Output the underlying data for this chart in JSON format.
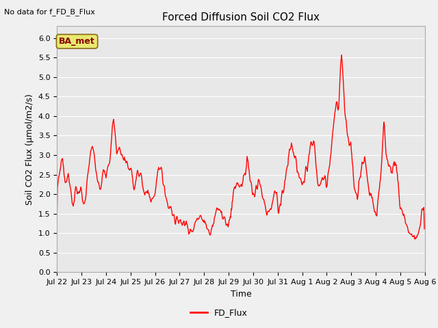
{
  "title": "Forced Diffusion Soil CO2 Flux",
  "ylabel": "Soil CO2 Flux (µmol/m2/s)",
  "xlabel": "Time",
  "no_data_text": "No data for f_FD_B_Flux",
  "legend_label": "FD_Flux",
  "ba_met_label": "BA_met",
  "ylim": [
    0.0,
    6.3
  ],
  "yticks": [
    0.0,
    0.5,
    1.0,
    1.5,
    2.0,
    2.5,
    3.0,
    3.5,
    4.0,
    4.5,
    5.0,
    5.5,
    6.0
  ],
  "line_color": "red",
  "line_width": 1.0,
  "fig_bg_color": "#f0f0f0",
  "plot_bg_color": "#e8e8e8",
  "grid_color": "#ffffff",
  "ba_met_facecolor": "#e8e870",
  "ba_met_edgecolor": "#8b6914",
  "ba_met_text_color": "#8b0000",
  "title_fontsize": 11,
  "label_fontsize": 9,
  "tick_fontsize": 8,
  "n_days": 15,
  "points_per_day": 48
}
